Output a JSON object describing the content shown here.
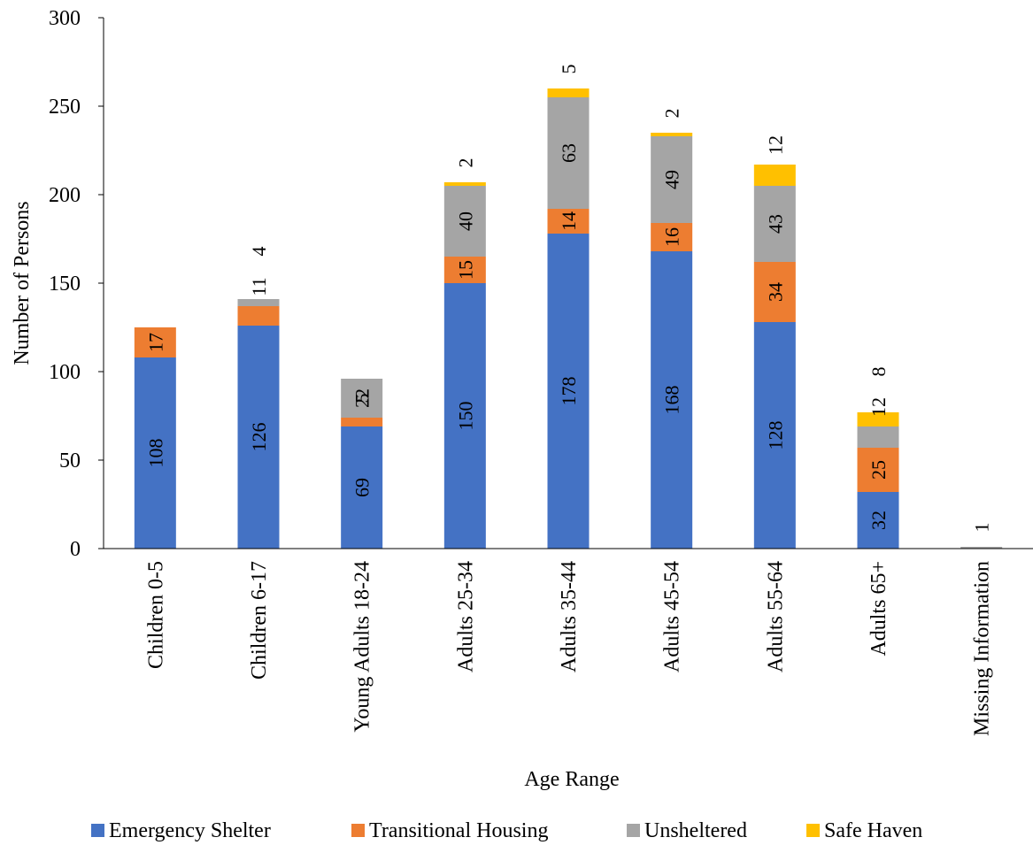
{
  "chart_data": {
    "type": "bar",
    "stacked": true,
    "title": "",
    "xlabel": "Age Range",
    "ylabel": "Number of Persons",
    "ylim": [
      0,
      300
    ],
    "yticks": [
      0,
      50,
      100,
      150,
      200,
      250,
      300
    ],
    "grid": false,
    "legend_position": "bottom",
    "categories": [
      "Children 0-5",
      "Children 6-17",
      "Young Adults 18-24",
      "Adults 25-34",
      "Adults 35-44",
      "Adults 45-54",
      "Adults 55-64",
      "Adults 65+",
      "Missing Information"
    ],
    "series": [
      {
        "name": "Emergency Shelter",
        "color": "#4472C4",
        "values": [
          108,
          126,
          69,
          150,
          178,
          168,
          128,
          32,
          0
        ],
        "labels": [
          "108",
          "126",
          "69",
          "150",
          "178",
          "168",
          "128",
          "32",
          ""
        ]
      },
      {
        "name": "Transitional Housing",
        "color": "#ED7D31",
        "values": [
          17,
          11,
          5,
          15,
          14,
          16,
          34,
          25,
          0
        ],
        "labels": [
          "17",
          "11",
          "5",
          "15",
          "14",
          "16",
          "34",
          "25",
          ""
        ]
      },
      {
        "name": "Unsheltered",
        "color": "#A5A5A5",
        "values": [
          0,
          4,
          22,
          40,
          63,
          49,
          43,
          12,
          1
        ],
        "labels": [
          "",
          "4",
          "22",
          "40",
          "63",
          "49",
          "43",
          "12",
          "1"
        ]
      },
      {
        "name": "Safe Haven",
        "color": "#FFC000",
        "values": [
          0,
          0,
          0,
          2,
          5,
          2,
          12,
          8,
          0
        ],
        "labels": [
          "",
          "",
          "",
          "2",
          "5",
          "2",
          "12",
          "8",
          ""
        ]
      }
    ]
  }
}
